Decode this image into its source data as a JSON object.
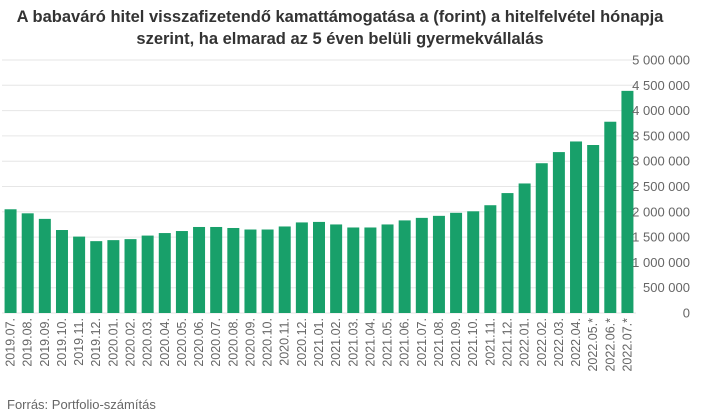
{
  "chart_data": {
    "type": "bar",
    "title": "A babaváró hitel visszafizetendő kamattámogatása a (forint) a hitelfelvétel hónapja szerint, ha elmarad az 5 éven belüli gyermekvállalás",
    "xlabel": "",
    "ylabel": "",
    "ylim": [
      0,
      5000000
    ],
    "yticks": [
      "0",
      "500 000",
      "1 000 000",
      "1 500 000",
      "2 000 000",
      "2 500 000",
      "3 000 000",
      "3 500 000",
      "4 000 000",
      "4 500 000",
      "5 000 000"
    ],
    "grid": true,
    "categories": [
      "2019.07.",
      "2019.08.",
      "2019.09.",
      "2019.10.",
      "2019.11.",
      "2019.12.",
      "2020.01.",
      "2020.02.",
      "2020.03.",
      "2020.04.",
      "2020.05.",
      "2020.06.",
      "2020.07.",
      "2020.08.",
      "2020.09.",
      "2020.10.",
      "2020.11.",
      "2020.12.",
      "2021.01.",
      "2021.02.",
      "2021.03.",
      "2021.04.",
      "2021.05.",
      "2021.06.",
      "2021.07.",
      "2021.08.",
      "2021.09.",
      "2021.10.",
      "2021.11.",
      "2021.12.",
      "2022.01.",
      "2022.02.",
      "2022.03.",
      "2022.04.",
      "2022.05.*",
      "2022.06.*",
      "2022.07.*"
    ],
    "values": [
      2050000,
      1970000,
      1860000,
      1640000,
      1510000,
      1420000,
      1440000,
      1460000,
      1530000,
      1580000,
      1620000,
      1700000,
      1700000,
      1680000,
      1650000,
      1650000,
      1710000,
      1790000,
      1800000,
      1750000,
      1690000,
      1690000,
      1750000,
      1830000,
      1880000,
      1920000,
      1980000,
      2010000,
      2130000,
      2370000,
      2560000,
      2960000,
      3180000,
      3390000,
      3320000,
      3780000,
      4390000
    ],
    "colors": {
      "bar": "#18a06a"
    }
  },
  "source": "Forrás: Portfolio-számítás"
}
